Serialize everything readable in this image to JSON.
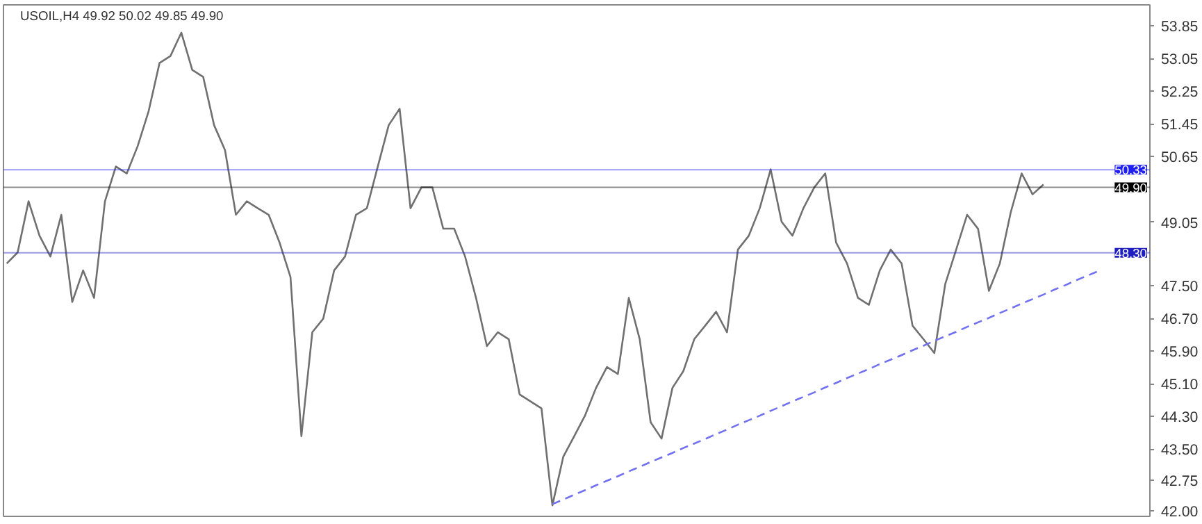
{
  "chart_data": {
    "type": "line",
    "title": "USOIL,H4  49.92 50.02 49.85 49.90",
    "categories": [
      null,
      null,
      null,
      null,
      null,
      null,
      null,
      null,
      null,
      null,
      null,
      null,
      null,
      null,
      null,
      null,
      null,
      null,
      null,
      null,
      null,
      null,
      null,
      null,
      null,
      null,
      null,
      null,
      null,
      null,
      null,
      null,
      null,
      null,
      null,
      null,
      null,
      null,
      null,
      null,
      null,
      null,
      null,
      null,
      null,
      null,
      null,
      null,
      null,
      null,
      null,
      null,
      null,
      null,
      null,
      null,
      null,
      null,
      null,
      null,
      null,
      null,
      null,
      null,
      null,
      null,
      null,
      null,
      null,
      null,
      null,
      null,
      null,
      null,
      null,
      null,
      null,
      null,
      null,
      null,
      null,
      null,
      null,
      null,
      null,
      null,
      null,
      null,
      null,
      null,
      null,
      null,
      null,
      null,
      null,
      null,
      null,
      null,
      null,
      null,
      null
    ],
    "ylim": [
      41.86,
      54.36
    ],
    "yticks": [
      {
        "value": 42.0,
        "label": "42.00"
      },
      42.75,
      {
        "value": 43.5,
        "label": "43.50"
      },
      {
        "value": 44.3,
        "label": "44.30"
      },
      {
        "value": 45.1,
        "label": "45.10"
      },
      {
        "value": 45.9,
        "label": "45.90"
      },
      {
        "value": 46.7,
        "label": "46.70"
      },
      {
        "value": 47.5,
        "label": "47.50"
      },
      49.05,
      50.65,
      51.45,
      52.25,
      53.05,
      53.85
    ],
    "tick_labels": "y",
    "grid": false,
    "marker": "none",
    "ref_lines": [
      {
        "axis": "y",
        "value": 50.33,
        "label": "50.33",
        "color": "#2020f0"
      },
      {
        "axis": "y",
        "value": 49.9,
        "label": "49.90",
        "color": "#000000"
      },
      {
        "axis": "y",
        "value": 48.3,
        "label": "48.30",
        "color": "#2020c0"
      }
    ],
    "series": [
      {
        "color": "#707070",
        "line_style": "solid",
        "values": [
          48.04,
          48.31,
          49.56,
          48.72,
          48.21,
          49.23,
          47.1,
          47.87,
          47.2,
          49.56,
          50.41,
          50.24,
          50.91,
          51.76,
          52.94,
          53.11,
          53.68,
          52.77,
          52.6,
          51.42,
          50.81,
          49.23,
          49.56,
          49.39,
          49.23,
          48.55,
          47.71,
          43.82,
          46.36,
          46.69,
          47.87,
          48.21,
          49.23,
          49.39,
          50.41,
          51.42,
          51.82,
          49.39,
          49.9,
          49.9,
          48.89,
          48.89,
          48.21,
          47.2,
          46.02,
          46.36,
          46.19,
          44.84,
          44.67,
          44.5,
          42.13,
          43.32,
          43.82,
          44.33,
          45.0,
          45.51,
          45.34,
          47.2,
          46.19,
          44.16,
          43.76,
          45.0,
          45.41,
          46.19,
          46.52,
          46.86,
          46.36,
          48.38,
          48.72,
          49.39,
          50.34,
          49.06,
          48.72,
          49.39,
          49.9,
          50.24,
          48.55,
          48.04,
          47.2,
          47.03,
          47.87,
          48.38,
          48.04,
          46.52,
          46.19,
          45.85,
          47.54,
          48.38,
          49.23,
          48.89,
          47.37,
          48.04,
          49.29,
          50.24,
          49.73,
          49.97,
          null,
          null,
          null,
          null,
          null
        ]
      },
      {
        "type": "line",
        "color": "#7070f0",
        "line_style": "dashed",
        "values": [
          null,
          null,
          null,
          null,
          null,
          null,
          null,
          null,
          null,
          null,
          null,
          null,
          null,
          null,
          null,
          null,
          null,
          null,
          null,
          null,
          null,
          null,
          null,
          null,
          null,
          null,
          null,
          null,
          null,
          null,
          null,
          null,
          null,
          null,
          null,
          null,
          null,
          null,
          null,
          null,
          null,
          null,
          null,
          null,
          null,
          null,
          null,
          null,
          null,
          null,
          42.16,
          42.27,
          42.39,
          42.5,
          42.62,
          42.73,
          42.84,
          42.96,
          43.07,
          43.19,
          43.3,
          43.41,
          43.53,
          43.64,
          43.75,
          43.87,
          43.98,
          44.1,
          44.21,
          44.32,
          44.44,
          44.55,
          44.67,
          44.78,
          44.89,
          45.01,
          45.12,
          45.24,
          45.35,
          45.46,
          45.58,
          45.69,
          45.8,
          45.92,
          46.03,
          46.15,
          46.26,
          46.37,
          46.49,
          46.6,
          46.71,
          46.83,
          46.94,
          47.06,
          47.17,
          47.28,
          47.4,
          47.51,
          47.63,
          47.74,
          47.85
        ]
      }
    ]
  }
}
